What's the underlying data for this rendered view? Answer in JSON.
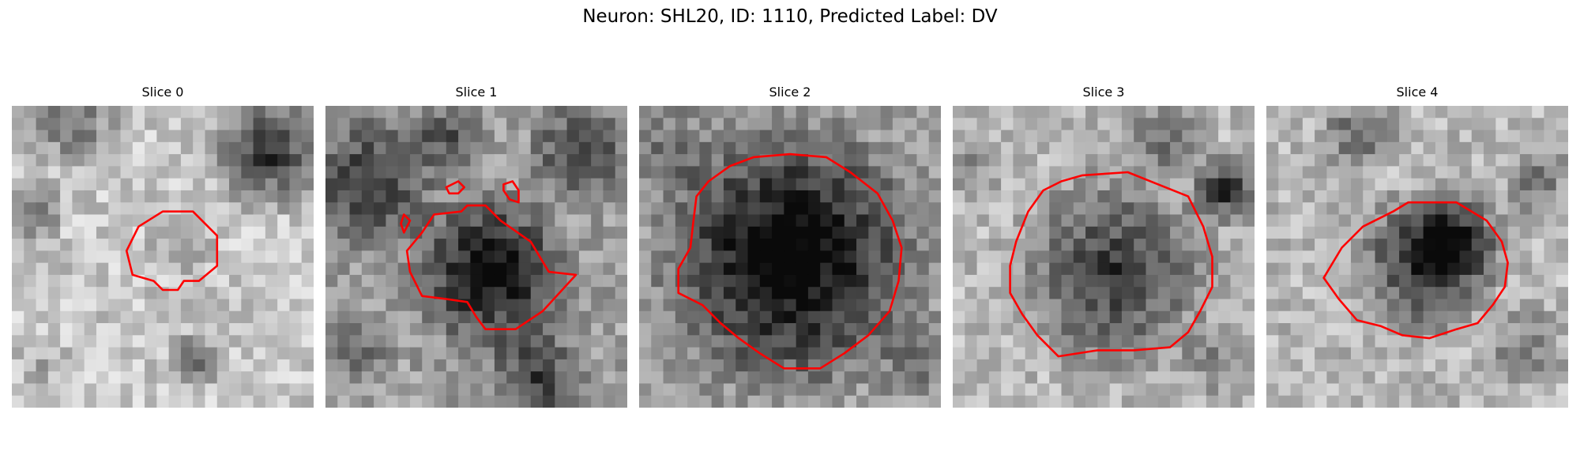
{
  "figure": {
    "title": "Neuron: SHL20, ID: 1110, Predicted Label: DV"
  },
  "panels": [
    {
      "label": "Slice 0"
    },
    {
      "label": "Slice 1"
    },
    {
      "label": "Slice 2"
    },
    {
      "label": "Slice 3"
    },
    {
      "label": "Slice 4"
    }
  ],
  "colors": {
    "contour": "#ff0000",
    "colormap": "grayscale"
  }
}
